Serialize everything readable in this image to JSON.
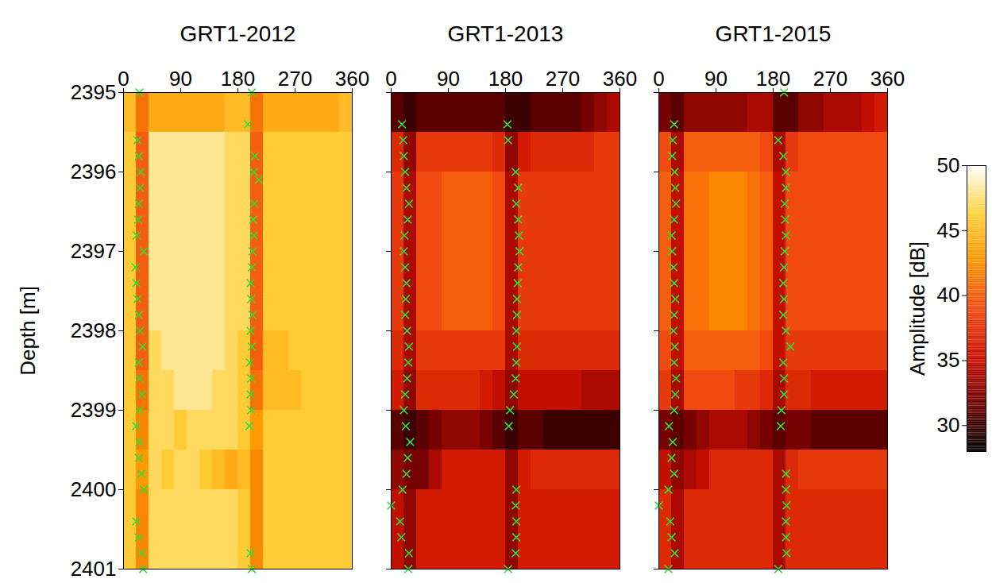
{
  "chart_data": [
    {
      "type": "heatmap",
      "title": "GRT1-2012",
      "xlim": [
        0,
        360
      ],
      "xticks": [
        0,
        90,
        180,
        270,
        360
      ],
      "ylim": [
        2395,
        2401
      ],
      "yticks": [
        2395,
        2396,
        2397,
        2398,
        2399,
        2400,
        2401
      ],
      "ylabel": "Depth [m]",
      "x_bins": [
        0,
        20,
        40,
        60,
        80,
        100,
        120,
        140,
        160,
        180,
        200,
        220,
        240,
        260,
        280,
        300,
        320,
        340,
        360
      ],
      "y_bins": [
        2395,
        2395.5,
        2396,
        2396.5,
        2397,
        2397.5,
        2398,
        2398.5,
        2399,
        2399.5,
        2400,
        2400.5,
        2401
      ],
      "cells": [
        [
          45,
          41,
          44,
          44,
          44,
          44,
          44,
          44,
          45,
          45,
          41,
          44,
          44,
          44,
          44,
          44,
          44,
          45
        ],
        [
          46,
          40,
          48,
          48,
          48,
          48,
          48,
          48,
          47,
          47,
          40,
          46,
          46,
          46,
          46,
          46,
          46,
          46
        ],
        [
          46,
          40,
          48,
          48,
          48,
          48,
          48,
          48,
          47,
          47,
          40,
          46,
          46,
          46,
          46,
          46,
          46,
          46
        ],
        [
          46,
          40,
          48,
          48,
          48,
          48,
          48,
          48,
          47,
          47,
          40,
          46,
          46,
          46,
          46,
          46,
          46,
          46
        ],
        [
          46,
          40,
          48,
          48,
          48,
          48,
          48,
          48,
          47,
          47,
          40,
          46,
          46,
          46,
          46,
          46,
          46,
          46
        ],
        [
          46,
          40,
          48,
          48,
          48,
          48,
          48,
          48,
          47,
          47,
          40,
          46,
          46,
          46,
          46,
          46,
          46,
          46
        ],
        [
          46,
          40,
          47,
          48,
          48,
          48,
          48,
          48,
          47,
          46,
          40,
          45,
          45,
          46,
          46,
          46,
          46,
          46
        ],
        [
          46,
          41,
          47,
          47,
          48,
          48,
          48,
          47,
          47,
          46,
          41,
          45,
          45,
          45,
          46,
          46,
          46,
          46
        ],
        [
          46,
          42,
          47,
          47,
          46,
          47,
          47,
          47,
          47,
          46,
          43,
          46,
          46,
          46,
          46,
          46,
          46,
          46
        ],
        [
          46,
          43,
          47,
          46,
          47,
          47,
          46,
          45,
          44,
          45,
          42,
          46,
          46,
          46,
          46,
          46,
          46,
          46
        ],
        [
          46,
          42,
          47,
          47,
          47,
          47,
          47,
          47,
          47,
          46,
          42,
          46,
          46,
          46,
          46,
          46,
          46,
          46
        ],
        [
          46,
          42,
          47,
          47,
          47,
          47,
          47,
          47,
          47,
          46,
          42,
          46,
          46,
          46,
          46,
          46,
          46,
          46
        ]
      ],
      "picks": {
        "marker": "x",
        "color": "#33dd33",
        "x": [
          25,
          22,
          24,
          27,
          26,
          24,
          23,
          21,
          32,
          19,
          20,
          22,
          24,
          26,
          30,
          24,
          25,
          29,
          25,
          20,
          25,
          24,
          28,
          32,
          20,
          24,
          29,
          31,
          202,
          196,
          207,
          205,
          213,
          206,
          204,
          205,
          203,
          202,
          200,
          201,
          203,
          200,
          202,
          199,
          201,
          200,
          201,
          198,
          200,
          202
        ],
        "y": [
          2395,
          2395.6,
          2395.8,
          2396,
          2396.2,
          2396.4,
          2396.6,
          2396.8,
          2397,
          2397.2,
          2397.4,
          2397.6,
          2397.8,
          2398,
          2398.2,
          2398.4,
          2398.6,
          2398.8,
          2399,
          2399.2,
          2399.4,
          2399.6,
          2399.8,
          2400,
          2400.4,
          2400.6,
          2400.8,
          2401,
          2395,
          2395.4,
          2395.8,
          2396,
          2396.1,
          2396.4,
          2396.6,
          2396.8,
          2397,
          2397.2,
          2397.4,
          2397.6,
          2397.8,
          2398,
          2398.2,
          2398.4,
          2398.6,
          2398.8,
          2399,
          2399.2,
          2400.8,
          2401
        ]
      }
    },
    {
      "type": "heatmap",
      "title": "GRT1-2013",
      "xlim": [
        0,
        360
      ],
      "xticks": [
        0,
        90,
        180,
        270,
        360
      ],
      "ylim": [
        2395,
        2401
      ],
      "yticks": [
        2395,
        2396,
        2397,
        2398,
        2399,
        2400,
        2401
      ],
      "tick_labels": "x",
      "x_bins": [
        0,
        20,
        40,
        60,
        80,
        100,
        120,
        140,
        160,
        180,
        200,
        220,
        240,
        260,
        280,
        300,
        320,
        340,
        360
      ],
      "y_bins": [
        2395,
        2395.5,
        2396,
        2396.5,
        2397,
        2397.5,
        2398,
        2398.5,
        2399,
        2399.5,
        2400,
        2400.5,
        2401
      ],
      "cells": [
        [
          31,
          30,
          31,
          31,
          31,
          31,
          31,
          31,
          31,
          30,
          30,
          31,
          31,
          31,
          31,
          32,
          33,
          34
        ],
        [
          37,
          33,
          38,
          38,
          38,
          38,
          38,
          38,
          37,
          33,
          36,
          37,
          37,
          37,
          37,
          37,
          38,
          38
        ],
        [
          38,
          34,
          39,
          39,
          40,
          40,
          40,
          40,
          39,
          34,
          38,
          38,
          38,
          38,
          38,
          38,
          38,
          38
        ],
        [
          38,
          34,
          39,
          39,
          40,
          40,
          40,
          40,
          39,
          34,
          38,
          38,
          38,
          38,
          38,
          38,
          38,
          38
        ],
        [
          38,
          34,
          39,
          39,
          40,
          40,
          40,
          40,
          39,
          34,
          38,
          38,
          38,
          38,
          38,
          38,
          38,
          38
        ],
        [
          38,
          34,
          39,
          39,
          40,
          40,
          40,
          40,
          39,
          34,
          38,
          38,
          38,
          38,
          38,
          38,
          38,
          38
        ],
        [
          37,
          34,
          38,
          38,
          38,
          38,
          38,
          38,
          38,
          34,
          37,
          37,
          37,
          37,
          37,
          37,
          37,
          37
        ],
        [
          36,
          33,
          37,
          37,
          37,
          37,
          37,
          36,
          35,
          33,
          35,
          35,
          35,
          35,
          35,
          34,
          34,
          34
        ],
        [
          31,
          30,
          31,
          32,
          33,
          33,
          33,
          32,
          31,
          30,
          31,
          31,
          30,
          30,
          30,
          30,
          30,
          30
        ],
        [
          33,
          32,
          32,
          34,
          36,
          36,
          36,
          36,
          36,
          33,
          36,
          37,
          37,
          37,
          37,
          37,
          37,
          37
        ],
        [
          35,
          33,
          36,
          36,
          36,
          36,
          36,
          36,
          36,
          33,
          36,
          36,
          36,
          36,
          36,
          36,
          36,
          36
        ],
        [
          35,
          33,
          36,
          36,
          36,
          36,
          36,
          36,
          36,
          33,
          36,
          36,
          36,
          36,
          36,
          36,
          36,
          36
        ]
      ],
      "picks": {
        "marker": "x",
        "color": "#33dd33",
        "x": [
          17,
          19,
          20,
          22,
          24,
          28,
          26,
          21,
          20,
          22,
          24,
          23,
          22,
          25,
          28,
          27,
          25,
          22,
          20,
          23,
          30,
          26,
          24,
          18,
          0,
          14,
          16,
          28,
          27,
          183,
          184,
          196,
          200,
          197,
          200,
          201,
          202,
          200,
          199,
          198,
          198,
          197,
          198,
          197,
          196,
          193,
          187,
          185,
          197,
          196,
          197,
          197,
          196,
          184
        ],
        "y": [
          2395.4,
          2395.6,
          2395.8,
          2396,
          2396.2,
          2396.4,
          2396.6,
          2396.8,
          2397,
          2397.2,
          2397.4,
          2397.6,
          2397.8,
          2398,
          2398.2,
          2398.4,
          2398.6,
          2398.8,
          2399,
          2399.2,
          2399.4,
          2399.6,
          2399.8,
          2400,
          2400.2,
          2400.4,
          2400.6,
          2400.8,
          2401,
          2395.4,
          2395.6,
          2396,
          2396.2,
          2396.4,
          2396.6,
          2396.8,
          2397,
          2397.2,
          2397.4,
          2397.6,
          2397.8,
          2398,
          2398.2,
          2398.4,
          2398.6,
          2398.8,
          2399,
          2399.2,
          2400,
          2400.2,
          2400.4,
          2400.6,
          2400.8,
          2401
        ]
      }
    },
    {
      "type": "heatmap",
      "title": "GRT1-2015",
      "xlim": [
        0,
        360
      ],
      "xticks": [
        0,
        90,
        180,
        270,
        360
      ],
      "ylim": [
        2395,
        2401
      ],
      "yticks": [
        2395,
        2396,
        2397,
        2398,
        2399,
        2400,
        2401
      ],
      "tick_labels": "x",
      "x_bins": [
        0,
        20,
        40,
        60,
        80,
        100,
        120,
        140,
        160,
        180,
        200,
        220,
        240,
        260,
        280,
        300,
        320,
        340,
        360
      ],
      "y_bins": [
        2395,
        2395.5,
        2396,
        2396.5,
        2397,
        2397.5,
        2398,
        2398.5,
        2399,
        2399.5,
        2400,
        2400.5,
        2401
      ],
      "cells": [
        [
          32,
          31,
          33,
          33,
          33,
          33,
          33,
          34,
          34,
          31,
          31,
          33,
          33,
          34,
          34,
          34,
          35,
          36
        ],
        [
          39,
          34,
          40,
          40,
          40,
          40,
          40,
          40,
          39,
          34,
          38,
          39,
          39,
          39,
          39,
          39,
          39,
          39
        ],
        [
          40,
          35,
          41,
          41,
          42,
          42,
          42,
          41,
          40,
          35,
          39,
          39,
          39,
          39,
          39,
          39,
          39,
          39
        ],
        [
          40,
          35,
          41,
          41,
          42,
          42,
          42,
          41,
          40,
          35,
          39,
          39,
          39,
          39,
          39,
          39,
          39,
          39
        ],
        [
          40,
          35,
          41,
          41,
          42,
          42,
          42,
          41,
          40,
          35,
          39,
          39,
          39,
          39,
          39,
          39,
          39,
          39
        ],
        [
          40,
          35,
          41,
          41,
          42,
          42,
          42,
          41,
          40,
          35,
          39,
          39,
          39,
          39,
          39,
          39,
          39,
          39
        ],
        [
          39,
          35,
          40,
          40,
          40,
          40,
          40,
          40,
          39,
          35,
          38,
          38,
          38,
          38,
          38,
          38,
          38,
          38
        ],
        [
          38,
          34,
          39,
          39,
          39,
          39,
          38,
          38,
          37,
          34,
          37,
          37,
          36,
          36,
          36,
          36,
          36,
          36
        ],
        [
          32,
          31,
          32,
          33,
          34,
          34,
          34,
          33,
          32,
          31,
          32,
          32,
          31,
          31,
          31,
          31,
          31,
          31
        ],
        [
          35,
          33,
          34,
          35,
          37,
          37,
          37,
          37,
          37,
          34,
          37,
          38,
          38,
          38,
          38,
          38,
          38,
          38
        ],
        [
          37,
          34,
          37,
          37,
          37,
          37,
          37,
          37,
          37,
          34,
          37,
          37,
          37,
          37,
          37,
          37,
          37,
          37
        ],
        [
          37,
          34,
          37,
          37,
          37,
          37,
          37,
          37,
          37,
          34,
          37,
          37,
          37,
          37,
          37,
          37,
          37,
          37
        ]
      ],
      "picks": {
        "marker": "x",
        "color": "#33dd33",
        "x": [
          24,
          22,
          21,
          25,
          26,
          27,
          24,
          20,
          21,
          23,
          24,
          26,
          24,
          23,
          25,
          24,
          27,
          26,
          24,
          16,
          22,
          20,
          24,
          15,
          0,
          18,
          20,
          25,
          15,
          197,
          188,
          196,
          200,
          200,
          198,
          199,
          200,
          198,
          197,
          196,
          197,
          196,
          200,
          207,
          196,
          197,
          197,
          193,
          192,
          200,
          200,
          201,
          200,
          200,
          201,
          188
        ],
        "y": [
          2395.4,
          2395.6,
          2395.8,
          2396,
          2396.2,
          2396.4,
          2396.6,
          2396.8,
          2397,
          2397.2,
          2397.4,
          2397.6,
          2397.8,
          2398,
          2398.2,
          2398.4,
          2398.6,
          2398.8,
          2399,
          2399.2,
          2399.4,
          2399.6,
          2399.8,
          2400,
          2400.2,
          2400.4,
          2400.6,
          2400.8,
          2401,
          2395,
          2395.6,
          2395.8,
          2396,
          2396.2,
          2396.4,
          2396.6,
          2396.8,
          2397,
          2397.2,
          2397.4,
          2397.6,
          2397.8,
          2398,
          2398.2,
          2398.4,
          2398.6,
          2398.8,
          2399,
          2399.2,
          2399.8,
          2400,
          2400.2,
          2400.4,
          2400.6,
          2400.8,
          2401
        ]
      },
      "colorbar": {
        "label": "Amplitude [dB]",
        "range": [
          28,
          50
        ],
        "ticks": [
          30,
          35,
          40,
          45,
          50
        ]
      }
    }
  ]
}
